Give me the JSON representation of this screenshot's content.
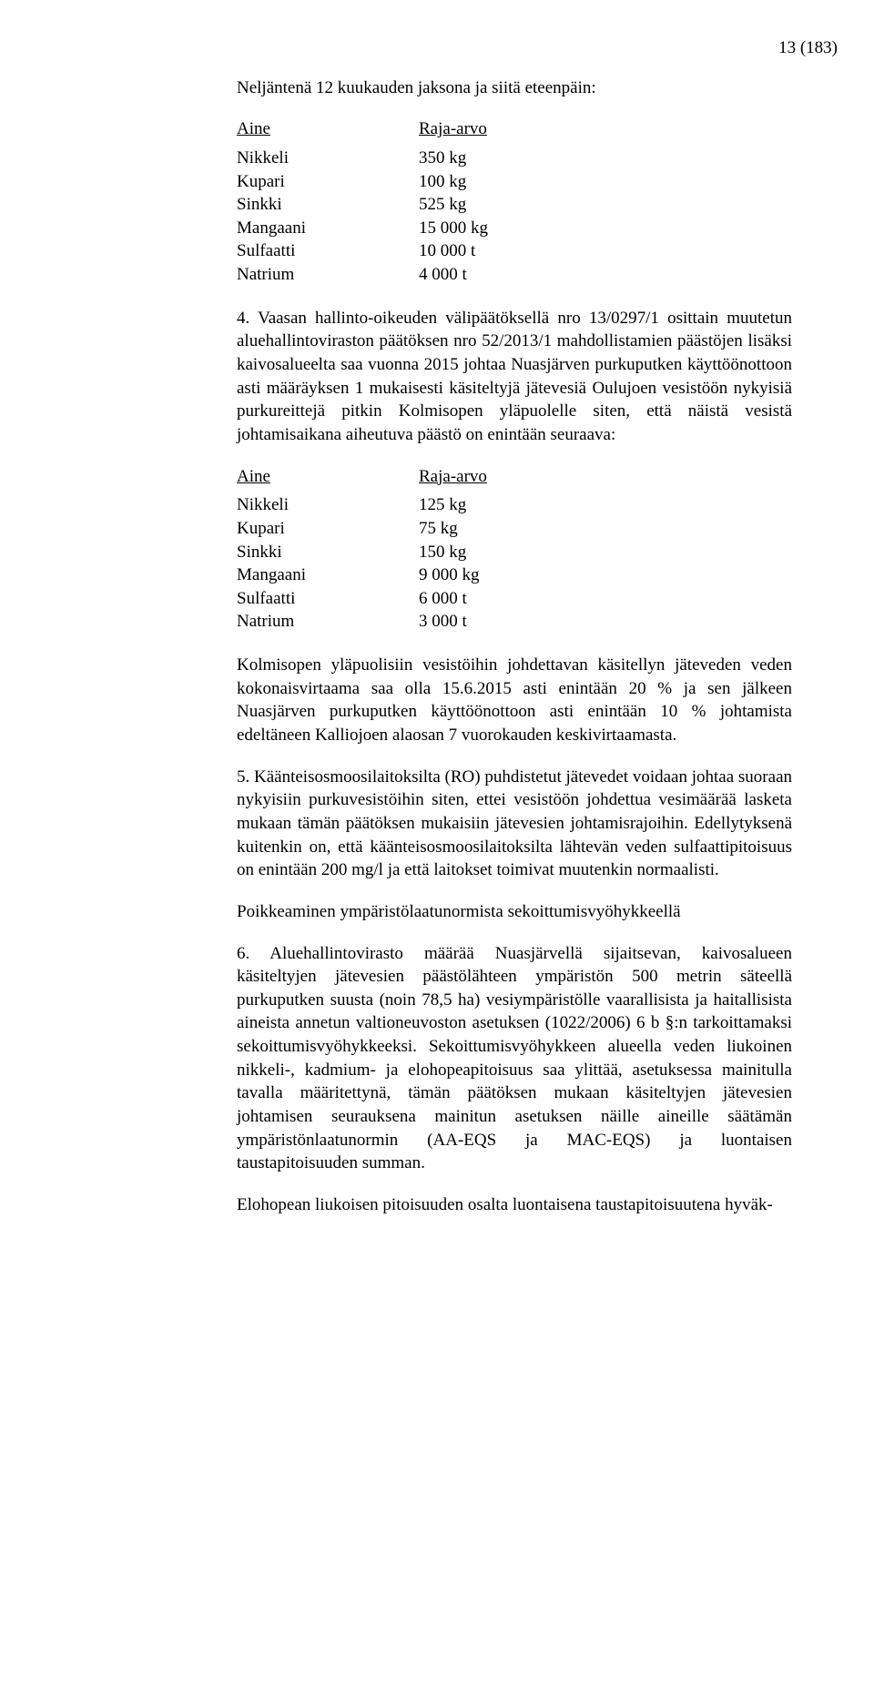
{
  "page_number": "13 (183)",
  "intro1": "Neljäntenä 12 kuukauden jaksona ja siitä eteenpäin:",
  "table_header": {
    "c1": "Aine",
    "c2": "Raja-arvo"
  },
  "table1": [
    {
      "c1": "Nikkeli",
      "c2": "350 kg"
    },
    {
      "c1": "Kupari",
      "c2": "100 kg"
    },
    {
      "c1": "Sinkki",
      "c2": "525 kg"
    },
    {
      "c1": "Mangaani",
      "c2": "15 000 kg"
    },
    {
      "c1": "Sulfaatti",
      "c2": "10 000 t"
    },
    {
      "c1": "Natrium",
      "c2": "4 000 t"
    }
  ],
  "para4": "4. Vaasan hallinto-oikeuden välipäätöksellä nro 13/0297/1 osittain muutetun aluehallintoviraston päätöksen nro 52/2013/1 mahdollistamien päästöjen lisäksi kaivosalueelta saa vuonna 2015 johtaa Nuasjärven purkuputken käyttöönottoon asti määräyksen 1 mukaisesti käsiteltyjä jätevesiä Oulujoen vesistöön nykyisiä purkureittejä pitkin Kolmisopen yläpuolelle siten, että näistä vesistä johtamisaikana aiheutuva päästö on enintään seuraava:",
  "table2": [
    {
      "c1": "Nikkeli",
      "c2": "125 kg"
    },
    {
      "c1": "Kupari",
      "c2": "75 kg"
    },
    {
      "c1": "Sinkki",
      "c2": "150 kg"
    },
    {
      "c1": "Mangaani",
      "c2": "9 000 kg"
    },
    {
      "c1": "Sulfaatti",
      "c2": "6 000 t"
    },
    {
      "c1": "Natrium",
      "c2": "3 000 t"
    }
  ],
  "para_kolmis": "Kolmisopen yläpuolisiin vesistöihin johdettavan käsitellyn jäteveden veden kokonaisvirtaama saa olla 15.6.2015 asti enintään 20 % ja sen jälkeen Nuasjärven purkuputken käyttöönottoon asti enintään 10 % johtamista edeltäneen Kalliojoen alaosan 7 vuorokauden keskivirtaamasta.",
  "para5": "5. Käänteisosmoosilaitoksilta (RO) puhdistetut jätevedet voidaan johtaa suoraan nykyisiin purkuvesistöihin siten, ettei vesistöön johdettua vesimäärää lasketa mukaan tämän päätöksen mukaisiin jätevesien johtamisrajoihin. Edellytyksenä kuitenkin on, että käänteisosmoosilaitoksilta lähtevän veden sulfaattipitoisuus on enintään 200 mg/l ja että laitokset toimivat muutenkin normaalisti.",
  "heading_poik": "Poikkeaminen ympäristölaatunormista sekoittumisvyöhykkeellä",
  "para6": "6. Aluehallintovirasto määrää Nuasjärvellä sijaitsevan, kaivosalueen käsiteltyjen jätevesien päästölähteen ympäristön 500 metrin säteellä purkuputken suusta (noin 78,5 ha) vesiympäristölle vaarallisista ja haitallisista aineista annetun valtioneuvoston asetuksen (1022/2006) 6 b §:n tarkoittamaksi sekoittumisvyöhykkeeksi. Sekoittumisvyöhykkeen alueella veden liukoinen nikkeli-, kadmium- ja elohopeapitoisuus saa ylittää, asetuksessa mainitulla tavalla määritettynä, tämän päätöksen mukaan käsiteltyjen jätevesien johtamisen seurauksena mainitun asetuksen näille aineille säätämän ympäristönlaatunormin (AA-EQS ja MAC-EQS) ja luontaisen taustapitoisuuden summan.",
  "para_eloh": "Elohopean liukoisen pitoisuuden osalta luontaisena taustapitoisuutena hyväk-"
}
